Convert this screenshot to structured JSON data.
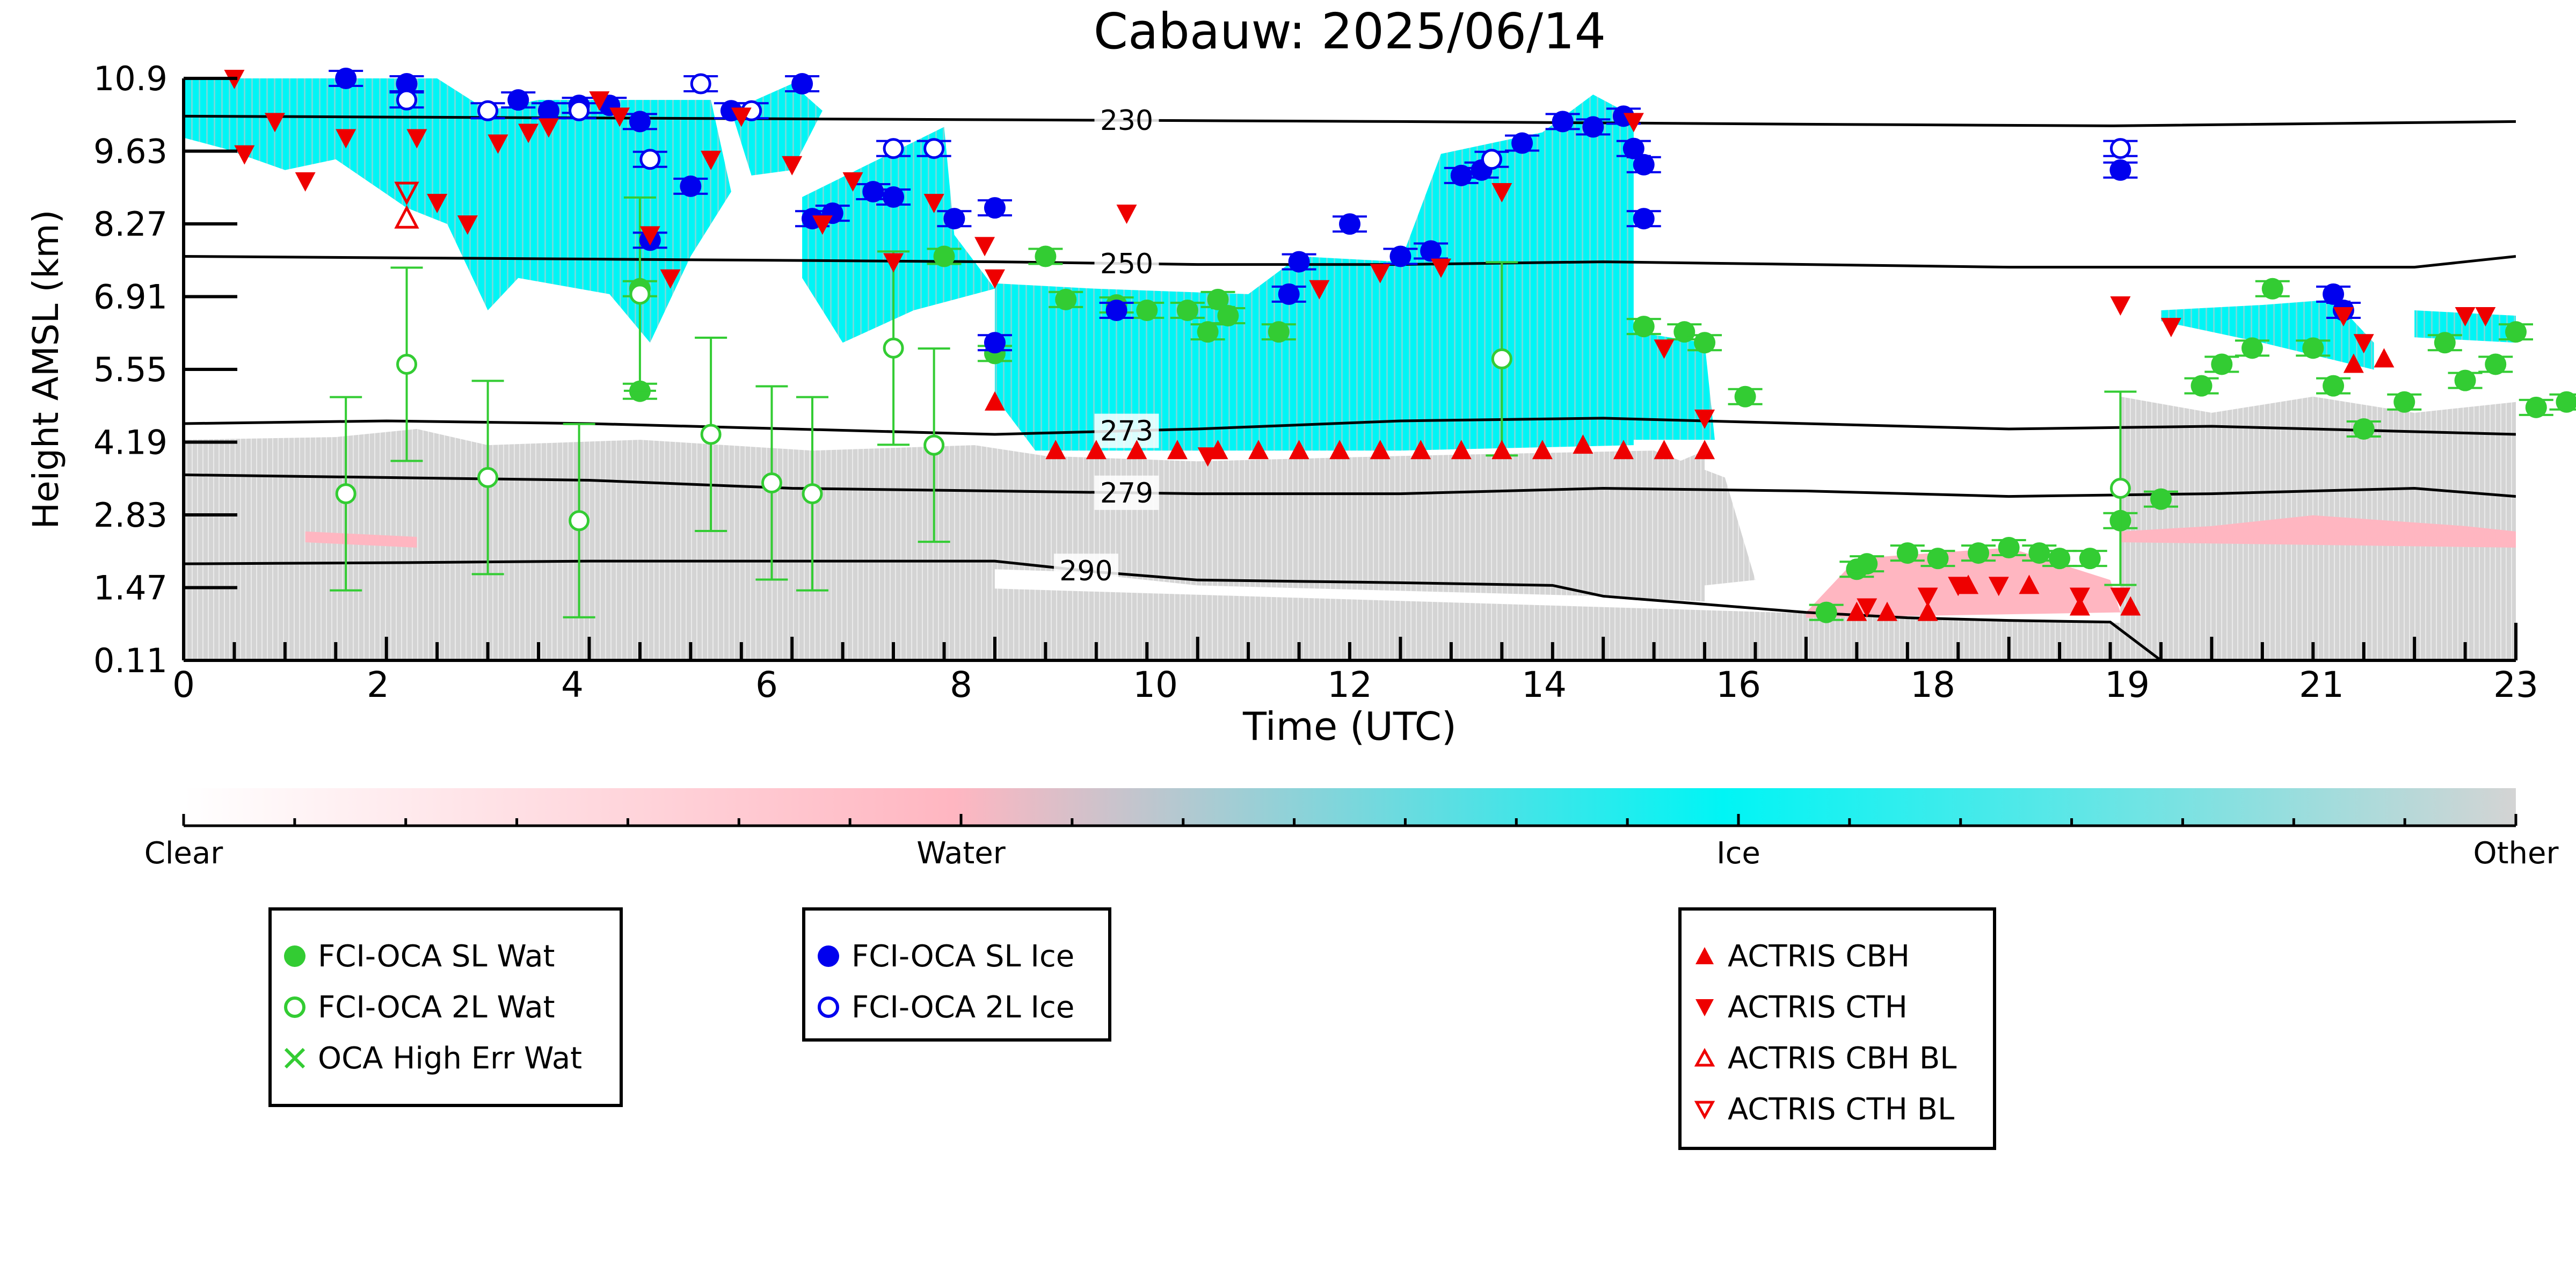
{
  "colors": {
    "clear": "#ffffff",
    "water": "#ffb6c1",
    "ice": "#00f5f5",
    "other": "#d4d4d4",
    "wat_marker": "#33cc33",
    "ice_marker": "#0000ee",
    "actris": "#ee0000",
    "isotherm": "#000000"
  },
  "chart_data": {
    "type": "scatter",
    "title": "Cabauw: 2025/06/14",
    "xlabel": "Time (UTC)",
    "ylabel": "Height AMSL (km)",
    "xlim": [
      0,
      23
    ],
    "ylim": [
      0.11,
      10.9
    ],
    "x_ticks": [
      "0",
      "2",
      "4",
      "6",
      "8",
      "10",
      "12",
      "14",
      "16",
      "18",
      "19",
      "21",
      "23"
    ],
    "y_ticks": [
      "0.11",
      "1.47",
      "2.83",
      "4.19",
      "5.55",
      "6.91",
      "8.27",
      "9.63",
      "10.9"
    ],
    "colorbar": {
      "labels": [
        "Clear",
        "Water",
        "Ice",
        "Other"
      ]
    },
    "isotherms": [
      {
        "label": "230",
        "points": [
          [
            0,
            10.2
          ],
          [
            6,
            10.15
          ],
          [
            12,
            10.1
          ],
          [
            16,
            10.05
          ],
          [
            19,
            10.02
          ],
          [
            23,
            10.1
          ]
        ]
      },
      {
        "label": "250",
        "points": [
          [
            0,
            7.6
          ],
          [
            4,
            7.55
          ],
          [
            8,
            7.5
          ],
          [
            10,
            7.45
          ],
          [
            12,
            7.45
          ],
          [
            14,
            7.5
          ],
          [
            18,
            7.4
          ],
          [
            20,
            7.4
          ],
          [
            22,
            7.4
          ],
          [
            23,
            7.6
          ]
        ]
      },
      {
        "label": "273",
        "points": [
          [
            0,
            4.5
          ],
          [
            2,
            4.55
          ],
          [
            4,
            4.5
          ],
          [
            6,
            4.4
          ],
          [
            8,
            4.3
          ],
          [
            10,
            4.4
          ],
          [
            12,
            4.55
          ],
          [
            14,
            4.6
          ],
          [
            16,
            4.5
          ],
          [
            18,
            4.4
          ],
          [
            20,
            4.45
          ],
          [
            23,
            4.3
          ]
        ]
      },
      {
        "label": "279",
        "points": [
          [
            0,
            3.55
          ],
          [
            2,
            3.5
          ],
          [
            4,
            3.45
          ],
          [
            6,
            3.3
          ],
          [
            8,
            3.25
          ],
          [
            10,
            3.2
          ],
          [
            12,
            3.2
          ],
          [
            14,
            3.3
          ],
          [
            16,
            3.25
          ],
          [
            18,
            3.15
          ],
          [
            20,
            3.2
          ],
          [
            22,
            3.3
          ],
          [
            23,
            3.15
          ]
        ]
      },
      {
        "label": "290",
        "points": [
          [
            0,
            1.9
          ],
          [
            2,
            1.92
          ],
          [
            4,
            1.95
          ],
          [
            6,
            1.95
          ],
          [
            8,
            1.95
          ],
          [
            9,
            1.75
          ],
          [
            10,
            1.6
          ],
          [
            12,
            1.55
          ],
          [
            13.5,
            1.5
          ],
          [
            14,
            1.3
          ],
          [
            15,
            1.15
          ],
          [
            16,
            1.0
          ],
          [
            17,
            0.9
          ],
          [
            18,
            0.85
          ],
          [
            19,
            0.82
          ],
          [
            19.5,
            0.11
          ]
        ]
      }
    ],
    "series": [
      {
        "name": "FCI-OCA SL Wat",
        "marker": "filled-circle",
        "points": [
          [
            4.5,
            5.1
          ],
          [
            4.5,
            7.0
          ],
          [
            7.5,
            7.6
          ],
          [
            8.0,
            5.8
          ],
          [
            8.5,
            7.6
          ],
          [
            8.7,
            6.8
          ],
          [
            9.2,
            6.7
          ],
          [
            9.5,
            6.6
          ],
          [
            9.9,
            6.6
          ],
          [
            10.1,
            6.2
          ],
          [
            10.2,
            6.8
          ],
          [
            10.3,
            6.5
          ],
          [
            10.8,
            6.2
          ],
          [
            14.4,
            6.3
          ],
          [
            14.8,
            6.2
          ],
          [
            15.0,
            6.0
          ],
          [
            15.4,
            5.0
          ],
          [
            16.2,
            1.0
          ],
          [
            16.5,
            1.8
          ],
          [
            16.6,
            1.9
          ],
          [
            17.0,
            2.1
          ],
          [
            17.3,
            2.0
          ],
          [
            17.7,
            2.1
          ],
          [
            18.0,
            2.2
          ],
          [
            18.3,
            2.1
          ],
          [
            18.5,
            2.0
          ],
          [
            18.8,
            2.0
          ],
          [
            19.1,
            2.7
          ],
          [
            19.5,
            3.1
          ],
          [
            19.9,
            5.2
          ],
          [
            20.1,
            5.6
          ],
          [
            20.4,
            5.9
          ],
          [
            20.6,
            7.0
          ],
          [
            21.0,
            5.9
          ],
          [
            21.2,
            5.2
          ],
          [
            21.5,
            4.4
          ],
          [
            21.9,
            4.9
          ],
          [
            22.3,
            6.0
          ],
          [
            22.5,
            5.3
          ],
          [
            22.8,
            5.6
          ],
          [
            23.0,
            6.2
          ],
          [
            23.2,
            4.8
          ],
          [
            23.5,
            4.9
          ]
        ]
      },
      {
        "name": "FCI-OCA 2L Wat",
        "marker": "open-circle",
        "points": [
          [
            1.6,
            3.2
          ],
          [
            2.2,
            5.6
          ],
          [
            3.0,
            3.5
          ],
          [
            3.9,
            2.7
          ],
          [
            4.5,
            6.9
          ],
          [
            5.2,
            4.3
          ],
          [
            5.8,
            3.4
          ],
          [
            6.2,
            3.2
          ],
          [
            7.0,
            5.9
          ],
          [
            7.4,
            4.1
          ],
          [
            13.0,
            5.7
          ],
          [
            19.1,
            3.3
          ]
        ]
      },
      {
        "name": "OCA High Err Wat",
        "marker": "x",
        "points": []
      },
      {
        "name": "FCI-OCA SL Ice",
        "marker": "filled-circle",
        "points": [
          [
            1.6,
            10.9
          ],
          [
            2.2,
            10.8
          ],
          [
            3.3,
            10.5
          ],
          [
            3.6,
            10.3
          ],
          [
            3.9,
            10.4
          ],
          [
            4.2,
            10.4
          ],
          [
            4.5,
            10.1
          ],
          [
            4.6,
            7.9
          ],
          [
            5.0,
            8.9
          ],
          [
            5.4,
            10.3
          ],
          [
            6.1,
            10.8
          ],
          [
            6.2,
            8.3
          ],
          [
            6.4,
            8.4
          ],
          [
            6.8,
            8.8
          ],
          [
            7.0,
            8.7
          ],
          [
            7.6,
            8.3
          ],
          [
            8.0,
            8.5
          ],
          [
            8.0,
            6.0
          ],
          [
            9.2,
            6.6
          ],
          [
            10.9,
            6.9
          ],
          [
            11.0,
            7.5
          ],
          [
            11.5,
            8.2
          ],
          [
            12.0,
            7.6
          ],
          [
            12.3,
            7.7
          ],
          [
            12.6,
            9.1
          ],
          [
            12.8,
            9.2
          ],
          [
            13.2,
            9.7
          ],
          [
            13.6,
            10.1
          ],
          [
            13.9,
            10.0
          ],
          [
            14.2,
            10.2
          ],
          [
            14.3,
            9.6
          ],
          [
            14.4,
            9.3
          ],
          [
            14.4,
            8.3
          ],
          [
            19.1,
            9.2
          ],
          [
            21.2,
            6.9
          ],
          [
            21.3,
            6.6
          ]
        ]
      },
      {
        "name": "FCI-OCA 2L Ice",
        "marker": "open-circle",
        "points": [
          [
            2.2,
            10.5
          ],
          [
            3.0,
            10.3
          ],
          [
            3.9,
            10.3
          ],
          [
            4.6,
            9.4
          ],
          [
            5.1,
            10.8
          ],
          [
            5.6,
            10.3
          ],
          [
            7.0,
            9.6
          ],
          [
            7.4,
            9.6
          ],
          [
            12.9,
            9.4
          ],
          [
            19.1,
            9.6
          ]
        ]
      },
      {
        "name": "ACTRIS CBH",
        "marker": "triangle-up",
        "points": [
          [
            8.0,
            4.9
          ],
          [
            8.6,
            4.0
          ],
          [
            9.0,
            4.0
          ],
          [
            9.4,
            4.0
          ],
          [
            9.8,
            4.0
          ],
          [
            10.2,
            4.0
          ],
          [
            10.6,
            4.0
          ],
          [
            11.0,
            4.0
          ],
          [
            11.4,
            4.0
          ],
          [
            11.8,
            4.0
          ],
          [
            12.2,
            4.0
          ],
          [
            12.6,
            4.0
          ],
          [
            13.0,
            4.0
          ],
          [
            13.4,
            4.0
          ],
          [
            13.8,
            4.1
          ],
          [
            14.2,
            4.0
          ],
          [
            14.6,
            4.0
          ],
          [
            15.0,
            4.0
          ],
          [
            16.5,
            1.0
          ],
          [
            16.8,
            1.0
          ],
          [
            17.2,
            1.0
          ],
          [
            17.6,
            1.5
          ],
          [
            18.2,
            1.5
          ],
          [
            18.7,
            1.1
          ],
          [
            19.2,
            1.1
          ],
          [
            21.4,
            5.6
          ],
          [
            21.7,
            5.7
          ]
        ]
      },
      {
        "name": "ACTRIS CTH",
        "marker": "triangle-down",
        "points": [
          [
            0.5,
            10.9
          ],
          [
            0.6,
            9.5
          ],
          [
            0.9,
            10.1
          ],
          [
            1.2,
            9.0
          ],
          [
            1.6,
            9.8
          ],
          [
            2.3,
            9.8
          ],
          [
            2.5,
            8.6
          ],
          [
            2.8,
            8.2
          ],
          [
            3.1,
            9.7
          ],
          [
            3.4,
            9.9
          ],
          [
            3.6,
            10.0
          ],
          [
            4.1,
            10.5
          ],
          [
            4.3,
            10.2
          ],
          [
            4.6,
            8.0
          ],
          [
            4.8,
            7.2
          ],
          [
            5.2,
            9.4
          ],
          [
            5.5,
            10.2
          ],
          [
            6.0,
            9.3
          ],
          [
            6.3,
            8.2
          ],
          [
            6.6,
            9.0
          ],
          [
            7.0,
            7.5
          ],
          [
            7.4,
            8.6
          ],
          [
            7.9,
            7.8
          ],
          [
            8.0,
            7.2
          ],
          [
            9.3,
            8.4
          ],
          [
            10.1,
            3.9
          ],
          [
            11.2,
            7.0
          ],
          [
            11.8,
            7.3
          ],
          [
            12.4,
            7.4
          ],
          [
            13.0,
            8.8
          ],
          [
            14.3,
            10.1
          ],
          [
            14.6,
            5.9
          ],
          [
            15.0,
            4.6
          ],
          [
            16.6,
            1.1
          ],
          [
            17.2,
            1.3
          ],
          [
            17.5,
            1.5
          ],
          [
            17.9,
            1.5
          ],
          [
            18.7,
            1.3
          ],
          [
            19.1,
            1.3
          ],
          [
            19.1,
            6.7
          ],
          [
            19.6,
            6.3
          ],
          [
            21.3,
            6.5
          ],
          [
            21.5,
            6.0
          ],
          [
            22.5,
            6.5
          ],
          [
            22.7,
            6.5
          ]
        ]
      },
      {
        "name": "ACTRIS CBH BL",
        "marker": "open-triangle-up",
        "points": [
          [
            2.2,
            8.3
          ]
        ]
      },
      {
        "name": "ACTRIS CTH BL",
        "marker": "open-triangle-down",
        "points": [
          [
            2.2,
            8.8
          ]
        ]
      }
    ]
  },
  "legends": {
    "water": [
      "FCI-OCA SL Wat",
      "FCI-OCA 2L Wat",
      "OCA High Err Wat"
    ],
    "ice": [
      "FCI-OCA SL Ice",
      "FCI-OCA 2L Ice"
    ],
    "actris": [
      "ACTRIS CBH",
      "ACTRIS CTH",
      "ACTRIS CBH BL",
      "ACTRIS CTH BL"
    ]
  }
}
